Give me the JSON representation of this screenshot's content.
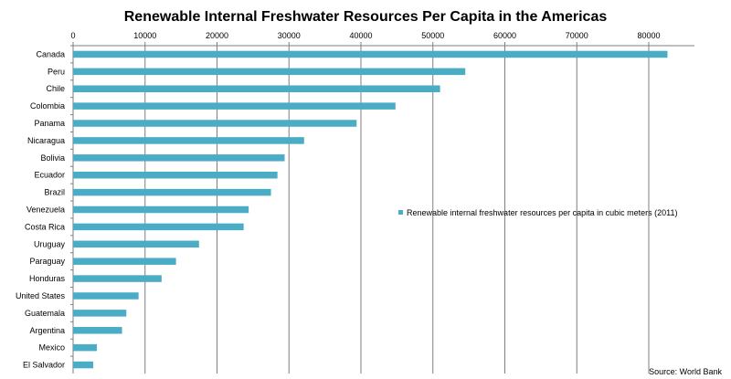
{
  "chart_data": {
    "type": "bar",
    "orientation": "horizontal",
    "title": "Renewable Internal Freshwater Resources Per Capita in the Americas",
    "categories": [
      "Canada",
      "Peru",
      "Chile",
      "Colombia",
      "Panama",
      "Nicaragua",
      "Bolivia",
      "Ecuador",
      "Brazil",
      "Venezuela",
      "Costa Rica",
      "Uruguay",
      "Paraguay",
      "Honduras",
      "United States",
      "Guatemala",
      "Argentina",
      "Mexico",
      "El Salvador"
    ],
    "series": [
      {
        "name": "Renewable internal freshwater resources per capita in cubic meters (2011)",
        "values": [
          82600,
          54500,
          51000,
          44800,
          39400,
          32100,
          29400,
          28400,
          27500,
          24400,
          23700,
          17500,
          14300,
          12300,
          9100,
          7400,
          6800,
          3300,
          2800
        ],
        "color": "#4bacc6"
      }
    ],
    "xlim": [
      0,
      85000
    ],
    "xticks": [
      "0",
      "10000",
      "20000",
      "30000",
      "40000",
      "50000",
      "60000",
      "70000",
      "80000"
    ],
    "xtick_values": [
      0,
      10000,
      20000,
      30000,
      40000,
      50000,
      60000,
      70000,
      80000
    ],
    "xaxis_position": "top",
    "grid": true,
    "legend_position": "right",
    "source": "Source: World Bank"
  }
}
